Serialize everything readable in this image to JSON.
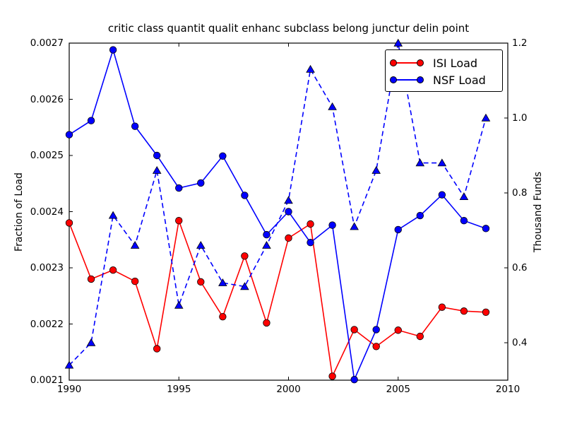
{
  "figure": {
    "background": "#ffffff",
    "frame_color": "#000000"
  },
  "title": "critic class quantit qualit enhanc subclass belong junctur delin point",
  "chart_data": {
    "type": "line",
    "x": [
      1990,
      1991,
      1992,
      1993,
      1994,
      1995,
      1996,
      1997,
      1998,
      1999,
      2000,
      2001,
      2002,
      2003,
      2004,
      2005,
      2006,
      2007,
      2008,
      2009
    ],
    "x_axis": {
      "range": [
        1990,
        2010
      ],
      "ticks": [
        1990,
        1995,
        2000,
        2005,
        2010
      ],
      "tick_labels": [
        "1990",
        "1995",
        "2000",
        "2005",
        "2010"
      ]
    },
    "y_left": {
      "label": "Fraction of Load",
      "range": [
        0.0021,
        0.0027
      ],
      "ticks": [
        0.0021,
        0.0022,
        0.0023,
        0.0024,
        0.0025,
        0.0026,
        0.0027
      ],
      "tick_labels": [
        "0.0021",
        "0.0022",
        "0.0023",
        "0.0024",
        "0.0025",
        "0.0026",
        "0.0027"
      ]
    },
    "y_right": {
      "label": "Thousand Funds",
      "range": [
        0.3,
        1.2
      ],
      "ticks": [
        0.4,
        0.6,
        0.8,
        1.0,
        1.2
      ],
      "tick_labels": [
        "0.4",
        "0.6",
        "0.8",
        "1.0",
        "1.2"
      ]
    },
    "grid": false,
    "legend": {
      "position": "upper right",
      "entries": [
        {
          "label": "ISI Load",
          "color": "#ff0000",
          "marker": "circle",
          "line": "solid"
        },
        {
          "label": "NSF Load",
          "color": "#0000ff",
          "marker": "circle",
          "line": "solid"
        }
      ]
    },
    "series": [
      {
        "name": "ISI Load",
        "axis": "left",
        "color": "#ff0000",
        "line": "solid",
        "marker": "circle",
        "values": [
          0.00238,
          0.00228,
          0.002296,
          0.002276,
          0.002156,
          0.002384,
          0.002275,
          0.002213,
          0.002321,
          0.002202,
          0.002353,
          0.002378,
          0.002107,
          0.00219,
          0.00216,
          0.002189,
          0.002178,
          0.00223,
          0.002223,
          0.002221
        ]
      },
      {
        "name": "NSF Load",
        "axis": "left",
        "color": "#0000ff",
        "line": "solid",
        "marker": "circle",
        "values": [
          0.002537,
          0.002562,
          0.002688,
          0.002552,
          0.0025,
          0.002442,
          0.002451,
          0.002499,
          0.002429,
          0.002359,
          0.0024,
          0.002345,
          0.002376,
          0.002101,
          0.00219,
          0.002368,
          0.002393,
          0.00243,
          0.002384,
          0.00237
        ]
      },
      {
        "name": "Thousand Funds (dashed, right axis)",
        "axis": "right",
        "color": "#0000ff",
        "line": "dashed",
        "marker": "triangle",
        "values": [
          0.34,
          0.4,
          0.74,
          0.66,
          0.86,
          0.5,
          0.66,
          0.56,
          0.55,
          0.66,
          0.78,
          1.13,
          1.03,
          0.71,
          0.86,
          1.2,
          0.88,
          0.88,
          0.79,
          1.0
        ]
      }
    ]
  }
}
